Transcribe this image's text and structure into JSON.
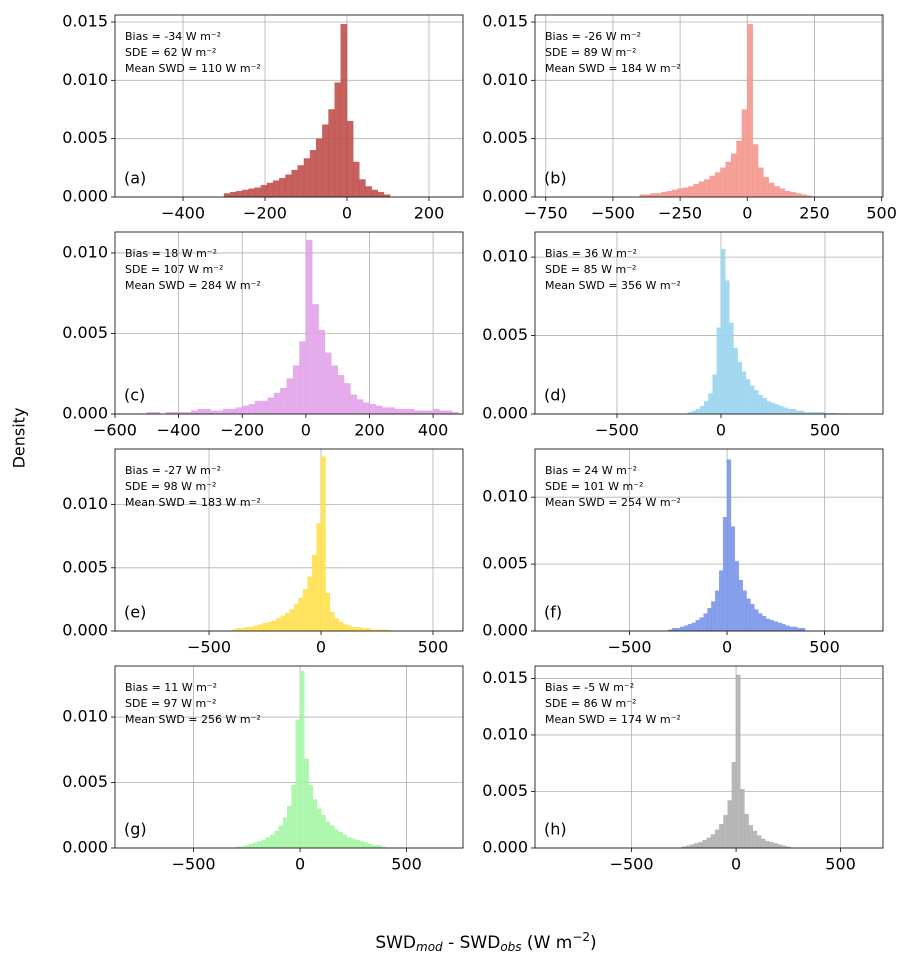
{
  "ylabel": "Density",
  "xlabel": [
    "SWD",
    "mod",
    " - SWD",
    "obs",
    " (W m",
    "−2",
    ")"
  ],
  "chart_data": [
    {
      "type": "histogram",
      "color": "#c0504d",
      "panel_label": "(a)",
      "annotations": [
        "Bias = -34 W m⁻²",
        "SDE = 62 W m⁻²",
        "Mean SWD = 110 W m⁻²"
      ],
      "bins": [
        -300,
        -285,
        -270,
        -255,
        -240,
        -225,
        -210,
        -195,
        -180,
        -165,
        -150,
        -135,
        -120,
        -105,
        -90,
        -75,
        -60,
        -45,
        -30,
        -15,
        0,
        15,
        30,
        45,
        60,
        75,
        90,
        105
      ],
      "values": [
        0.0003,
        0.0004,
        0.0005,
        0.0006,
        0.0007,
        0.0008,
        0.001,
        0.0012,
        0.0014,
        0.0016,
        0.0019,
        0.0023,
        0.0027,
        0.0033,
        0.004,
        0.005,
        0.0062,
        0.0075,
        0.0098,
        0.0148,
        0.0065,
        0.003,
        0.0015,
        0.0009,
        0.0006,
        0.0004,
        0.0002
      ],
      "xlim": [
        -566,
        283
      ],
      "xticks": [
        {
          "value": -400,
          "label": "−400"
        },
        {
          "value": -200,
          "label": "−200"
        },
        0,
        200
      ],
      "ylim": [
        0,
        0.0156
      ],
      "yticks": [
        {
          "value": 0,
          "label": "0.000"
        },
        {
          "value": 0.005,
          "label": "0.005"
        },
        {
          "value": 0.01,
          "label": "0.010"
        },
        {
          "value": 0.015,
          "label": "0.015"
        }
      ],
      "grid": true
    },
    {
      "type": "histogram",
      "color": "#f4978e",
      "panel_label": "(b)",
      "annotations": [
        "Bias = -26 W m⁻²",
        "SDE = 89 W m⁻²",
        "Mean SWD = 184 W m⁻²"
      ],
      "bins": [
        -400,
        -380,
        -360,
        -340,
        -320,
        -300,
        -280,
        -260,
        -240,
        -220,
        -200,
        -180,
        -160,
        -140,
        -120,
        -100,
        -80,
        -60,
        -40,
        -20,
        0,
        20,
        40,
        60,
        80,
        100,
        120,
        140,
        160,
        180,
        200,
        220,
        240
      ],
      "values": [
        0.0002,
        0.0002,
        0.0003,
        0.0003,
        0.0004,
        0.0005,
        0.0006,
        0.0007,
        0.0008,
        0.0009,
        0.0011,
        0.0013,
        0.0015,
        0.0018,
        0.0021,
        0.0025,
        0.003,
        0.0037,
        0.0048,
        0.0075,
        0.0148,
        0.0045,
        0.0025,
        0.0017,
        0.0012,
        0.0009,
        0.0007,
        0.0005,
        0.0004,
        0.0003,
        0.0002,
        0.0001
      ],
      "xlim": [
        -790,
        505
      ],
      "xticks": [
        {
          "value": -750,
          "label": "−750"
        },
        {
          "value": -500,
          "label": "−500"
        },
        {
          "value": -250,
          "label": "−250"
        },
        0,
        250,
        500
      ],
      "ylim": [
        0,
        0.0156
      ],
      "yticks": [
        {
          "value": 0,
          "label": "0.000"
        },
        {
          "value": 0.005,
          "label": "0.005"
        },
        {
          "value": 0.01,
          "label": "0.010"
        },
        {
          "value": 0.015,
          "label": "0.015"
        }
      ],
      "grid": true
    },
    {
      "type": "histogram",
      "color": "#e2a3ea",
      "panel_label": "(c)",
      "annotations": [
        "Bias = 18 W m⁻²",
        "SDE = 107 W m⁻²",
        "Mean SWD = 284 W m⁻²"
      ],
      "bins": [
        -500,
        -480,
        -460,
        -440,
        -420,
        -400,
        -380,
        -360,
        -340,
        -320,
        -300,
        -280,
        -260,
        -240,
        -220,
        -200,
        -180,
        -160,
        -140,
        -120,
        -100,
        -80,
        -60,
        -40,
        -20,
        0,
        20,
        40,
        60,
        80,
        100,
        120,
        140,
        160,
        180,
        200,
        220,
        240,
        260,
        280,
        300,
        320,
        340,
        360,
        380,
        400,
        420,
        440,
        460,
        480
      ],
      "values": [
        0.0001,
        0.0001,
        0,
        0.0001,
        0.0001,
        0.0001,
        0.0001,
        0.0002,
        0.0003,
        0.0003,
        0.0002,
        0.0002,
        0.0003,
        0.0003,
        0.0004,
        0.0005,
        0.0006,
        0.0008,
        0.0008,
        0.001,
        0.0013,
        0.0016,
        0.0022,
        0.003,
        0.0045,
        0.0108,
        0.0068,
        0.0052,
        0.0038,
        0.003,
        0.0024,
        0.0019,
        0.0012,
        0.0009,
        0.0007,
        0.0006,
        0.0005,
        0.0004,
        0.0004,
        0.0003,
        0.0003,
        0.0003,
        0.0002,
        0.0002,
        0.0002,
        0.0003,
        0.0002,
        0.0002,
        0.0001
      ],
      "xlim": [
        -600,
        494
      ],
      "xticks": [
        {
          "value": -600,
          "label": "−600"
        },
        {
          "value": -400,
          "label": "−400"
        },
        {
          "value": -200,
          "label": "−200"
        },
        0,
        200,
        400
      ],
      "ylim": [
        0,
        0.0113
      ],
      "yticks": [
        {
          "value": 0,
          "label": "0.000"
        },
        {
          "value": 0.005,
          "label": "0.005"
        },
        {
          "value": 0.01,
          "label": "0.010"
        }
      ],
      "grid": true
    },
    {
      "type": "histogram",
      "color": "#9ad4ee",
      "panel_label": "(d)",
      "annotations": [
        "Bias = 36 W m⁻²",
        "SDE = 85 W m⁻²",
        "Mean SWD = 356 W m⁻²"
      ],
      "bins": [
        -160,
        -140,
        -120,
        -100,
        -80,
        -60,
        -40,
        -20,
        0,
        20,
        40,
        60,
        80,
        100,
        120,
        140,
        160,
        180,
        200,
        220,
        240,
        260,
        280,
        300,
        320,
        340,
        360,
        380,
        400,
        420,
        440,
        460,
        480,
        500,
        520,
        540,
        560,
        580,
        600
      ],
      "values": [
        0.0001,
        0.0002,
        0.0003,
        0.0005,
        0.0008,
        0.0013,
        0.0025,
        0.0055,
        0.0105,
        0.0085,
        0.0058,
        0.0042,
        0.0033,
        0.0027,
        0.0022,
        0.0018,
        0.0015,
        0.0012,
        0.001,
        0.0008,
        0.0007,
        0.0006,
        0.0005,
        0.0004,
        0.0003,
        0.0003,
        0.0002,
        0.0002,
        0.0001,
        0.0001,
        0.0001,
        0.0001,
        0.0001,
        5e-05,
        5e-05,
        5e-05,
        3e-05,
        3e-05
      ],
      "xlim": [
        -894,
        779
      ],
      "xticks": [
        {
          "value": -500,
          "label": "−500"
        },
        0,
        500
      ],
      "ylim": [
        0,
        0.0116
      ],
      "yticks": [
        {
          "value": 0,
          "label": "0.000"
        },
        {
          "value": 0.005,
          "label": "0.005"
        },
        {
          "value": 0.01,
          "label": "0.010"
        }
      ],
      "grid": true
    },
    {
      "type": "histogram",
      "color": "#ffe050",
      "panel_label": "(e)",
      "annotations": [
        "Bias = -27 W m⁻²",
        "SDE = 98 W m⁻²",
        "Mean SWD = 183 W m⁻²"
      ],
      "bins": [
        -400,
        -380,
        -360,
        -340,
        -320,
        -300,
        -280,
        -260,
        -240,
        -220,
        -200,
        -180,
        -160,
        -140,
        -120,
        -100,
        -80,
        -60,
        -40,
        -20,
        0,
        20,
        40,
        60,
        80,
        100,
        120,
        140,
        160,
        180,
        200,
        220,
        240,
        260,
        280,
        300
      ],
      "values": [
        0.0001,
        0.0002,
        0.0002,
        0.0003,
        0.0003,
        0.0004,
        0.0005,
        0.0006,
        0.0007,
        0.0008,
        0.001,
        0.0012,
        0.0014,
        0.0017,
        0.0021,
        0.0026,
        0.0033,
        0.0043,
        0.006,
        0.0085,
        0.0138,
        0.003,
        0.0015,
        0.001,
        0.0007,
        0.0005,
        0.0004,
        0.0003,
        0.0003,
        0.0002,
        0.0002,
        0.0001,
        0.0001,
        0.0001,
        0.0001
      ],
      "xlim": [
        -920,
        634
      ],
      "xticks": [
        {
          "value": -500,
          "label": "−500"
        },
        0,
        500
      ],
      "ylim": [
        0,
        0.0144
      ],
      "yticks": [
        {
          "value": 0,
          "label": "0.000"
        },
        {
          "value": 0.005,
          "label": "0.005"
        },
        {
          "value": 0.01,
          "label": "0.010"
        }
      ],
      "grid": true
    },
    {
      "type": "histogram",
      "color": "#7b96ea",
      "panel_label": "(f)",
      "annotations": [
        "Bias = 24 W m⁻²",
        "SDE = 101 W m⁻²",
        "Mean SWD = 254 W m⁻²"
      ],
      "bins": [
        -300,
        -280,
        -260,
        -240,
        -220,
        -200,
        -180,
        -160,
        -140,
        -120,
        -100,
        -80,
        -60,
        -40,
        -20,
        0,
        20,
        40,
        60,
        80,
        100,
        120,
        140,
        160,
        180,
        200,
        220,
        240,
        260,
        280,
        300,
        320,
        340,
        360,
        380,
        400
      ],
      "values": [
        0.0001,
        0.0002,
        0.0002,
        0.0003,
        0.0004,
        0.0005,
        0.0006,
        0.0008,
        0.001,
        0.0013,
        0.0017,
        0.0022,
        0.003,
        0.0045,
        0.0085,
        0.0128,
        0.0078,
        0.0052,
        0.0038,
        0.003,
        0.0024,
        0.002,
        0.0016,
        0.0013,
        0.0011,
        0.0009,
        0.0008,
        0.0007,
        0.0006,
        0.0005,
        0.0004,
        0.0003,
        0.0003,
        0.0002,
        0.0002
      ],
      "xlim": [
        -985,
        800
      ],
      "xticks": [
        {
          "value": -500,
          "label": "−500"
        },
        0,
        500
      ],
      "ylim": [
        0,
        0.0136
      ],
      "yticks": [
        {
          "value": 0,
          "label": "0.000"
        },
        {
          "value": 0.005,
          "label": "0.005"
        },
        {
          "value": 0.01,
          "label": "0.010"
        }
      ],
      "grid": true
    },
    {
      "type": "histogram",
      "color": "#a6f5a6",
      "panel_label": "(g)",
      "annotations": [
        "Bias = 11 W m⁻²",
        "SDE = 97 W m⁻²",
        "Mean SWD = 256 W m⁻²"
      ],
      "bins": [
        -300,
        -280,
        -260,
        -240,
        -220,
        -200,
        -180,
        -160,
        -140,
        -120,
        -100,
        -80,
        -60,
        -40,
        -20,
        0,
        20,
        40,
        60,
        80,
        100,
        120,
        140,
        160,
        180,
        200,
        220,
        240,
        260,
        280,
        300,
        320,
        340,
        360,
        380,
        400
      ],
      "values": [
        0.0001,
        0.0001,
        0.0002,
        0.0003,
        0.0004,
        0.0005,
        0.0006,
        0.0008,
        0.001,
        0.0013,
        0.0017,
        0.0023,
        0.0032,
        0.0048,
        0.0098,
        0.0135,
        0.0068,
        0.0048,
        0.0037,
        0.003,
        0.0025,
        0.002,
        0.0017,
        0.0014,
        0.0012,
        0.001,
        0.0008,
        0.0007,
        0.0006,
        0.0005,
        0.0004,
        0.0003,
        0.0002,
        0.0002,
        0.0001
      ],
      "xlim": [
        -869,
        765
      ],
      "xticks": [
        {
          "value": -500,
          "label": "−500"
        },
        0,
        500
      ],
      "ylim": [
        0,
        0.0139
      ],
      "yticks": [
        {
          "value": 0,
          "label": "0.000"
        },
        {
          "value": 0.005,
          "label": "0.005"
        },
        {
          "value": 0.01,
          "label": "0.010"
        }
      ],
      "grid": true
    },
    {
      "type": "histogram",
      "color": "#b0b0b0",
      "panel_label": "(h)",
      "annotations": [
        "Bias = -5 W m⁻²",
        "SDE = 86 W m⁻²",
        "Mean SWD = 174 W m⁻²"
      ],
      "bins": [
        -260,
        -240,
        -220,
        -200,
        -180,
        -160,
        -140,
        -120,
        -100,
        -80,
        -60,
        -40,
        -20,
        0,
        20,
        40,
        60,
        80,
        100,
        120,
        140,
        160,
        180,
        200,
        220,
        240,
        260
      ],
      "values": [
        0.0001,
        0.0002,
        0.0003,
        0.0004,
        0.0005,
        0.0007,
        0.0009,
        0.0012,
        0.0016,
        0.0021,
        0.0029,
        0.0042,
        0.0076,
        0.0153,
        0.0052,
        0.003,
        0.002,
        0.0015,
        0.0011,
        0.0008,
        0.0006,
        0.0005,
        0.0004,
        0.0003,
        0.0002,
        0.0001
      ],
      "xlim": [
        -962,
        703
      ],
      "xticks": [
        {
          "value": -500,
          "label": "−500"
        },
        0,
        500
      ],
      "ylim": [
        0,
        0.0161
      ],
      "yticks": [
        {
          "value": 0,
          "label": "0.000"
        },
        {
          "value": 0.005,
          "label": "0.005"
        },
        {
          "value": 0.01,
          "label": "0.010"
        },
        {
          "value": 0.015,
          "label": "0.015"
        }
      ],
      "grid": true
    }
  ]
}
